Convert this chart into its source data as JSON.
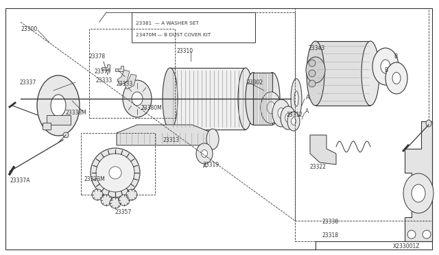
{
  "bg_color": "#ffffff",
  "diagram_color": "#333333",
  "fig_width": 6.4,
  "fig_height": 3.72,
  "dpi": 100,
  "watermark": "X233001Z",
  "legend_text1": "23381  — A WASHER SET",
  "legend_text2": "23470M — B DUST COVER KIT"
}
